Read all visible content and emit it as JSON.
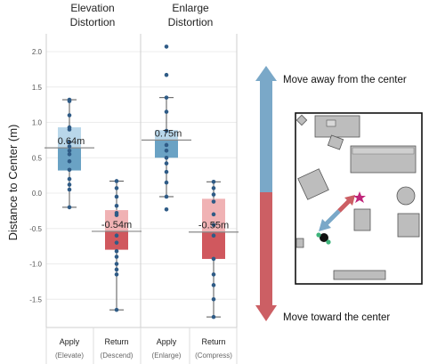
{
  "colors": {
    "up_blue": "#6aa2c4",
    "up_blue_light": "#b9d7ea",
    "down_red": "#d0585e",
    "down_red_light": "#f0b2b4",
    "point": "#2f5b86",
    "arrow_blue": "#7aa8c8",
    "arrow_red": "#cc5f64",
    "star": "#c0267a"
  },
  "chart_data": {
    "type": "box",
    "ylabel": "Distance to Center (m)",
    "ylim": [
      -1.85,
      2.25
    ],
    "yticks": [
      "2.0",
      "1.5",
      "1.0",
      "0.5",
      "0.0",
      "-0.5",
      "-1.0",
      "-1.5"
    ],
    "yticks_values": [
      2.0,
      1.5,
      1.0,
      0.5,
      0.0,
      -0.5,
      -1.0,
      -1.5
    ],
    "panels": [
      {
        "title_line1": "Elevation",
        "title_line2": "Distortion"
      },
      {
        "title_line1": "Enlarge",
        "title_line2": "Distortion"
      }
    ],
    "series": [
      {
        "panel": 0,
        "category": "Apply",
        "sub": "(Elevate)",
        "kind": "up",
        "q1": 0.32,
        "q3": 0.93,
        "median": 0.64,
        "whisker_low": -0.2,
        "whisker_high": 1.32,
        "median_label": "0.64m",
        "points": [
          1.32,
          1.3,
          1.1,
          0.93,
          0.9,
          0.72,
          0.66,
          0.6,
          0.55,
          0.45,
          0.33,
          0.2,
          0.12,
          0.05,
          -0.2
        ]
      },
      {
        "panel": 0,
        "category": "Return",
        "sub": "(Descend)",
        "kind": "down",
        "q1": -0.8,
        "q3": -0.24,
        "median": -0.54,
        "whisker_low": -1.65,
        "whisker_high": 0.17,
        "median_label": "-0.54m",
        "points": [
          0.17,
          0.07,
          -0.05,
          -0.18,
          -0.28,
          -0.31,
          -0.6,
          -0.7,
          -0.82,
          -0.9,
          -1.0,
          -1.08,
          -1.15,
          -1.65
        ]
      },
      {
        "panel": 1,
        "category": "Apply",
        "sub": "(Enlarge)",
        "kind": "up",
        "q1": 0.5,
        "q3": 0.89,
        "median": 0.75,
        "whisker_low": -0.05,
        "whisker_high": 1.35,
        "median_label": "0.75m",
        "points": [
          2.07,
          1.67,
          1.35,
          1.15,
          0.88,
          0.68,
          0.6,
          0.5,
          0.42,
          0.3,
          0.15,
          -0.05,
          -0.23
        ]
      },
      {
        "panel": 1,
        "category": "Return",
        "sub": "(Compress)",
        "kind": "down",
        "q1": -0.93,
        "q3": -0.08,
        "median": -0.55,
        "whisker_low": -1.75,
        "whisker_high": 0.16,
        "median_label": "-0.55m",
        "points": [
          0.16,
          0.07,
          -0.02,
          -0.12,
          -0.3,
          -0.45,
          -0.6,
          -0.93,
          -1.15,
          -1.3,
          -1.5,
          -1.75
        ]
      }
    ]
  },
  "arrow_labels": {
    "away": "Move away from the center",
    "toward": "Move toward the center"
  }
}
